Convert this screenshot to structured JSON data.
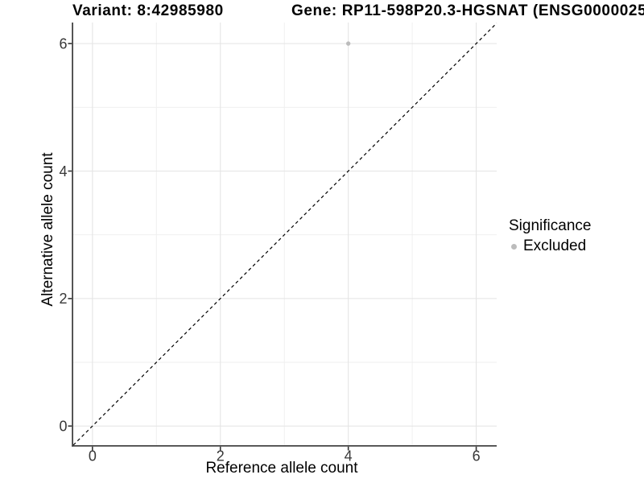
{
  "header": {
    "variant_title": "Variant: 8:42985980",
    "gene_title": "Gene: RP11-598P20.3-HGSNAT (ENSG0000025"
  },
  "chart_data": {
    "type": "scatter",
    "title": "Variant: 8:42985980",
    "subtitle_right": "Gene: RP11-598P20.3-HGSNAT (ENSG0000025",
    "xlabel": "Reference allele count",
    "ylabel": "Alternative allele count",
    "xlim": [
      -0.3,
      6.32
    ],
    "ylim": [
      -0.3,
      6.33
    ],
    "x_ticks": [
      0,
      2,
      4,
      6
    ],
    "y_ticks": [
      0,
      2,
      4,
      6
    ],
    "x_minor_ticks": [
      1,
      3,
      5
    ],
    "y_minor_ticks": [
      1,
      3,
      5
    ],
    "grid": "major+minor",
    "points": [
      {
        "x": 4,
        "y": 6,
        "significance": "Excluded"
      }
    ],
    "point_color": "#bcbcbc",
    "point_radius": 2.7,
    "reference_line": {
      "type": "identity y=x",
      "style": "dashed",
      "color": "#000000"
    },
    "legend": {
      "title": "Significance",
      "position": "right",
      "items": [
        {
          "label": "Excluded",
          "color": "#bcbcbc"
        }
      ]
    }
  },
  "style": {
    "background": "#ffffff",
    "axis_line_color": "#444444",
    "tick_color": "#333333",
    "tick_label_color": "#383838",
    "major_grid_color": "#e4e4e4",
    "minor_grid_color": "#eeeeee",
    "text_color": "#000000"
  }
}
